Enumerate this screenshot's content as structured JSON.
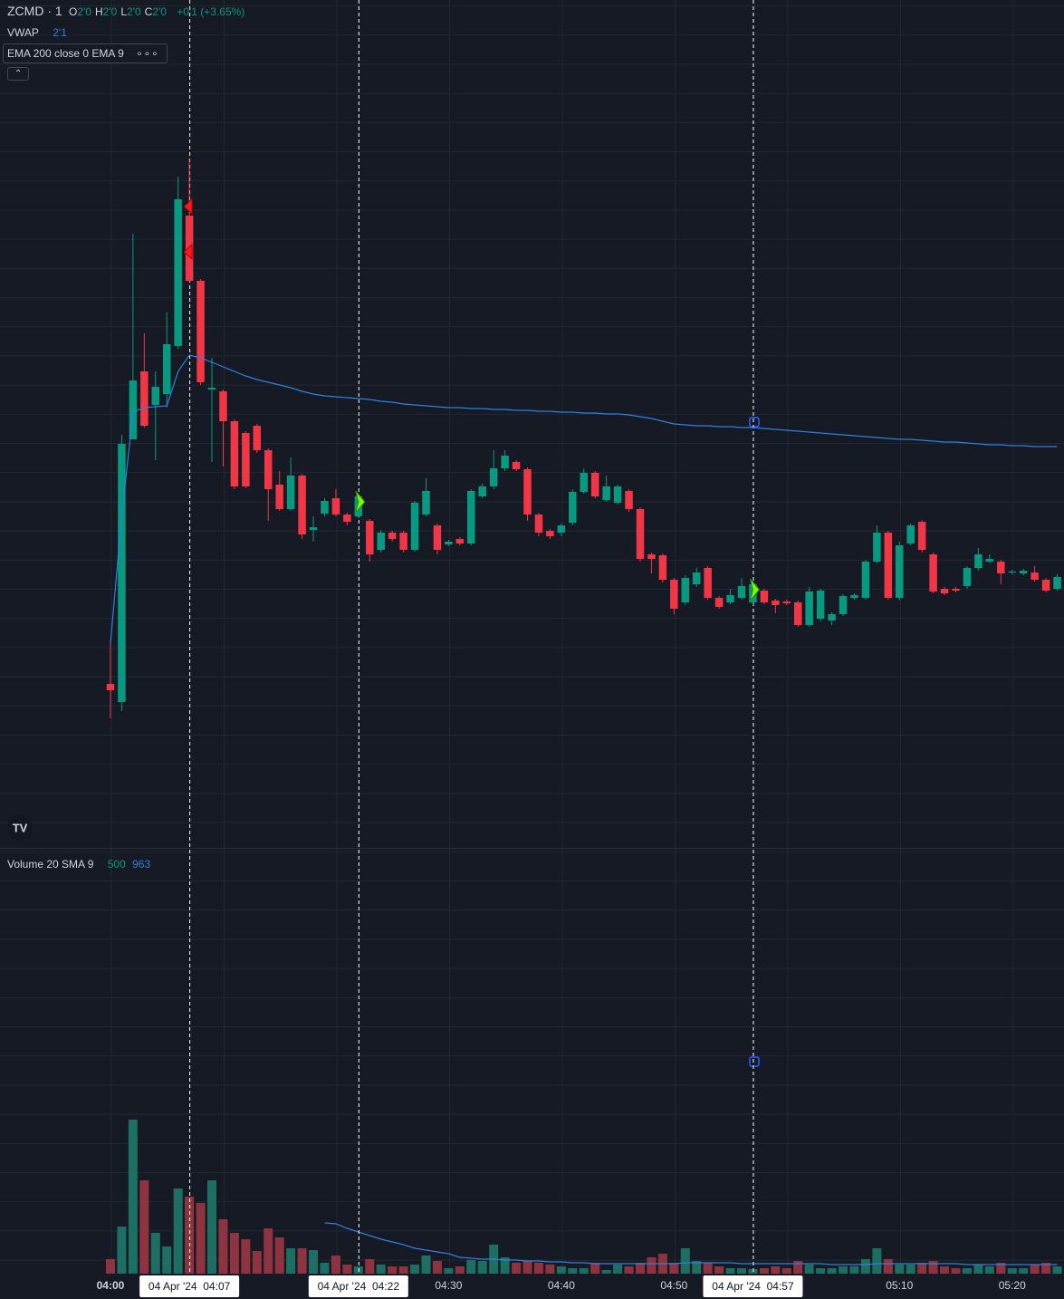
{
  "chart_data": {
    "type": "candlestick",
    "symbol": "ZCMD · 1",
    "ohlc_legend": [
      {
        "label": "O",
        "value": "2'0"
      },
      {
        "label": "H",
        "value": "2'0"
      },
      {
        "label": "L",
        "value": "2'0"
      },
      {
        "label": "C",
        "value": "2'0"
      }
    ],
    "change": "+0'1 (+3.65%)",
    "vwap_legend": {
      "name": "VWAP",
      "value": "2'1"
    },
    "ema_legend": "EMA 200 close 0 EMA 9",
    "volume_legend": {
      "name": "Volume 20 SMA 9",
      "volume": 500,
      "sma": 963
    },
    "x": [
      0,
      1,
      2,
      3,
      4,
      5,
      6,
      7,
      8,
      9,
      10,
      11,
      12,
      13,
      14,
      15,
      16,
      17,
      18,
      19,
      20,
      21,
      22,
      23,
      24,
      25,
      26,
      27,
      28,
      29,
      30,
      31,
      32,
      33,
      34,
      35,
      36,
      37,
      38,
      39,
      40,
      41,
      42,
      43,
      44,
      45,
      46,
      47,
      48,
      49,
      50,
      51,
      52,
      53,
      54,
      55,
      56,
      57,
      58,
      59,
      60,
      61,
      62,
      63,
      64,
      65,
      66,
      67,
      68,
      69,
      70,
      71,
      72,
      73,
      74,
      75,
      76,
      77,
      78,
      79,
      80,
      81,
      82,
      83,
      84
    ],
    "open": [
      145,
      125,
      415,
      490,
      453,
      465,
      518,
      662,
      590,
      470,
      468,
      435,
      422,
      430,
      403,
      365,
      338,
      375,
      315,
      333,
      350,
      332,
      330,
      325,
      293,
      312,
      312,
      293,
      332,
      320,
      299,
      305,
      300,
      352,
      363,
      383,
      390,
      382,
      332,
      314,
      312,
      323,
      357,
      378,
      348,
      345,
      358,
      338,
      288,
      287,
      260,
      235,
      255,
      273,
      240,
      235,
      240,
      235,
      248,
      237,
      236,
      235,
      210,
      217,
      215,
      222,
      240,
      240,
      280,
      312,
      240,
      300,
      324,
      288,
      250,
      250,
      253,
      273,
      280,
      280,
      268,
      267,
      268,
      260,
      250
    ],
    "high": [
      190,
      420,
      642,
      532,
      490,
      555,
      705,
      725,
      592,
      505,
      470,
      437,
      424,
      432,
      405,
      380,
      395,
      377,
      330,
      350,
      360,
      334,
      355,
      327,
      315,
      314,
      314,
      347,
      372,
      322,
      304,
      307,
      360,
      366,
      403,
      403,
      392,
      384,
      334,
      316,
      322,
      360,
      383,
      380,
      375,
      365,
      360,
      340,
      290,
      289,
      262,
      265,
      273,
      275,
      242,
      250,
      262,
      260,
      250,
      239,
      238,
      237,
      252,
      250,
      224,
      244,
      245,
      282,
      320,
      314,
      302,
      322,
      326,
      290,
      252,
      252,
      275,
      295,
      288,
      282,
      271,
      272,
      275,
      262,
      266
    ],
    "low": [
      107,
      115,
      415,
      428,
      392,
      450,
      515,
      588,
      475,
      390,
      385,
      360,
      361,
      400,
      325,
      336,
      336,
      305,
      302,
      330,
      330,
      320,
      328,
      280,
      290,
      302,
      290,
      291,
      330,
      288,
      297,
      298,
      298,
      350,
      360,
      380,
      380,
      325,
      308,
      305,
      308,
      320,
      355,
      350,
      346,
      343,
      335,
      280,
      267,
      257,
      222,
      232,
      252,
      238,
      228,
      233,
      238,
      232,
      233,
      223,
      232,
      208,
      208,
      214,
      210,
      220,
      238,
      238,
      278,
      238,
      237,
      298,
      290,
      245,
      243,
      246,
      250,
      270,
      278,
      255,
      266,
      265,
      258,
      246,
      248
    ],
    "close": [
      138,
      410,
      480,
      430,
      473,
      520,
      680,
      590,
      478,
      472,
      435,
      363,
      363,
      403,
      360,
      338,
      375,
      310,
      318,
      347,
      332,
      324,
      352,
      288,
      312,
      305,
      293,
      345,
      358,
      293,
      302,
      300,
      358,
      363,
      383,
      397,
      382,
      332,
      312,
      308,
      320,
      357,
      378,
      352,
      363,
      363,
      338,
      283,
      283,
      260,
      228,
      262,
      268,
      240,
      230,
      243,
      253,
      255,
      235,
      232,
      234,
      210,
      247,
      248,
      222,
      242,
      243,
      280,
      312,
      240,
      298,
      320,
      293,
      247,
      245,
      248,
      273,
      288,
      283,
      267,
      269,
      270,
      260,
      248,
      263
    ],
    "vwap": [
      190,
      330,
      445,
      450,
      451,
      452,
      490,
      508,
      505,
      500,
      495,
      490,
      485,
      481,
      478,
      475,
      472,
      468,
      465,
      463,
      462,
      461,
      460,
      459,
      457,
      456,
      454,
      453,
      452,
      451,
      450,
      450,
      449,
      449,
      448,
      448,
      447,
      447,
      446,
      446,
      445,
      445,
      444,
      444,
      443,
      443,
      442,
      440,
      438,
      435,
      432,
      431,
      430,
      430,
      429,
      429,
      428,
      428,
      427,
      426,
      425,
      424,
      423,
      422,
      421,
      420,
      419,
      418,
      417,
      416,
      415,
      415,
      414,
      413,
      412,
      412,
      411,
      410,
      409,
      409,
      408,
      408,
      407,
      407,
      407
    ],
    "volume": [
      16,
      52,
      170,
      103,
      45,
      30,
      94,
      85,
      78,
      103,
      60,
      45,
      38,
      25,
      50,
      40,
      28,
      28,
      26,
      12,
      20,
      10,
      8,
      16,
      10,
      8,
      8,
      10,
      20,
      14,
      6,
      8,
      15,
      14,
      32,
      18,
      12,
      14,
      12,
      10,
      8,
      6,
      6,
      12,
      4,
      10,
      8,
      12,
      18,
      22,
      12,
      28,
      14,
      12,
      8,
      6,
      6,
      5,
      6,
      8,
      6,
      14,
      10,
      6,
      6,
      8,
      8,
      16,
      28,
      16,
      10,
      10,
      12,
      14,
      8,
      6,
      6,
      10,
      8,
      12,
      6,
      6,
      10,
      12,
      8
    ],
    "volume_sma": [
      null,
      null,
      null,
      null,
      null,
      null,
      null,
      null,
      null,
      null,
      null,
      null,
      null,
      null,
      null,
      null,
      null,
      null,
      null,
      56,
      55,
      50,
      46,
      42,
      38,
      35,
      32,
      28,
      26,
      24,
      22,
      18,
      17,
      16,
      16,
      15,
      15,
      14,
      14,
      13,
      13,
      12,
      12,
      11,
      11,
      11,
      11,
      11,
      11,
      11,
      11,
      12,
      12,
      12,
      12,
      12,
      11,
      11,
      11,
      11,
      11,
      11,
      11,
      11,
      10,
      10,
      10,
      10,
      11,
      11,
      11,
      11,
      11,
      11,
      11,
      11,
      10,
      10,
      10,
      10,
      10,
      10,
      10,
      10,
      10
    ],
    "xlim": [
      -9.8,
      84.6
    ],
    "ylim": [
      -36,
      900
    ],
    "volume_ylim": [
      0,
      470
    ],
    "xticks": [
      {
        "value": 0,
        "label": "04:00"
      },
      {
        "value": 30,
        "label": "04:30"
      },
      {
        "value": 40,
        "label": "04:40"
      },
      {
        "value": 50,
        "label": "04:50"
      },
      {
        "value": 70,
        "label": "05:10"
      },
      {
        "value": 80,
        "label": "05:20"
      }
    ],
    "crosshairs": [
      {
        "x": 7,
        "label": "04 Apr '24  04:07"
      },
      {
        "x": 22,
        "label": "04 Apr '24  04:22"
      },
      {
        "x": 57,
        "label": "04 Apr '24  04:57"
      }
    ],
    "sell_signals": [
      7,
      7
    ],
    "buy_signals": [
      22,
      57
    ],
    "up_color": "#089981",
    "down_color": "#f23645",
    "volume_up_color": "#1e6f63",
    "volume_down_color": "#8e3441",
    "vwap_color": "#2f80e0",
    "sma_color": "#2f80e0",
    "sell_color": "#ff1a1a",
    "buy_color": "#76ff03"
  }
}
